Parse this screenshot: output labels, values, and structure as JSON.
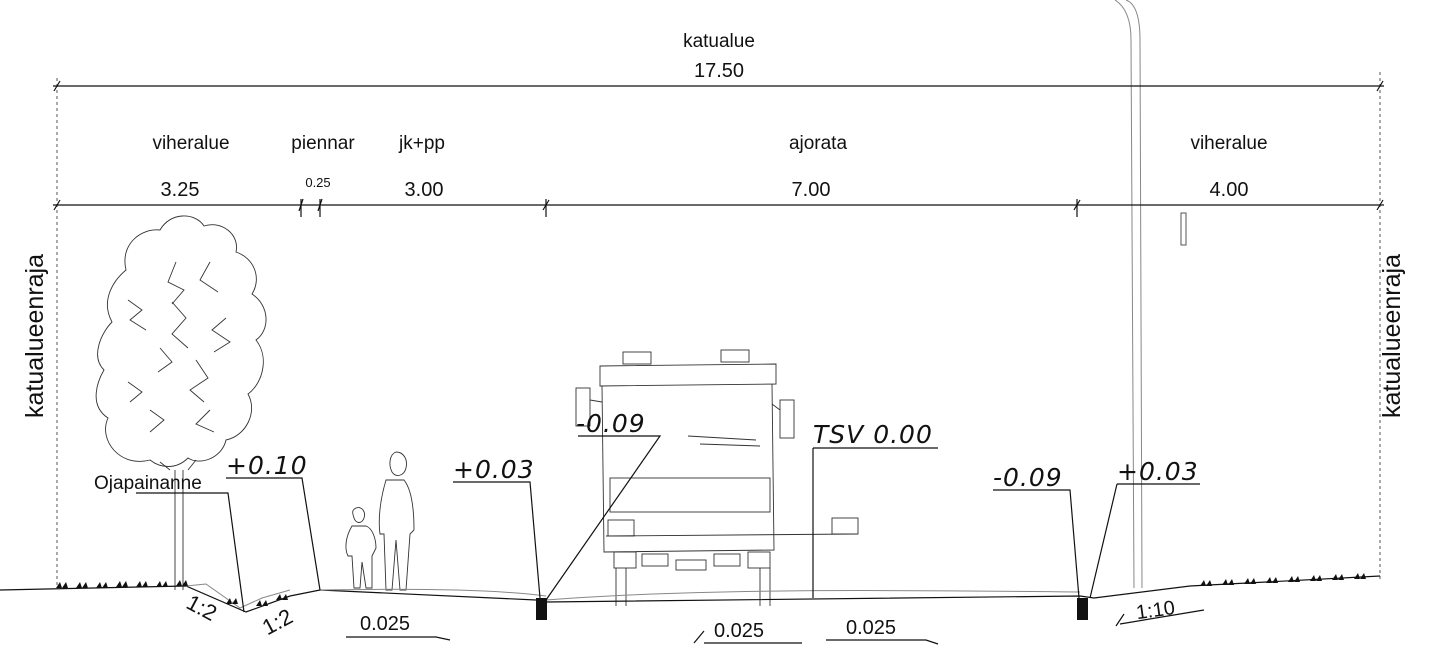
{
  "overall": {
    "label": "katualue",
    "width": "17.50"
  },
  "segments": [
    {
      "label": "viheralue",
      "width": "3.25"
    },
    {
      "label": "piennar",
      "width": "0.25"
    },
    {
      "label": "jk+pp",
      "width": "3.00"
    },
    {
      "label": "ajorata",
      "width": "7.00"
    },
    {
      "label": "viheralue",
      "width": "4.00"
    }
  ],
  "boundary_left": "katualueenraja",
  "boundary_right": "katualueenraja",
  "ditch_label": "Ojapainanne",
  "elevations": {
    "e1": "+0.10",
    "e2": "+0.03",
    "e3": "-0.09",
    "e4": "TSV 0.00",
    "e5": "-0.09",
    "e6": "+0.03"
  },
  "slopes": {
    "ditch_left": "1:2",
    "ditch_right": "1:2",
    "walkway": "0.025",
    "road_left": "0.025",
    "road_right": "0.025",
    "verge_right": "1:10"
  }
}
